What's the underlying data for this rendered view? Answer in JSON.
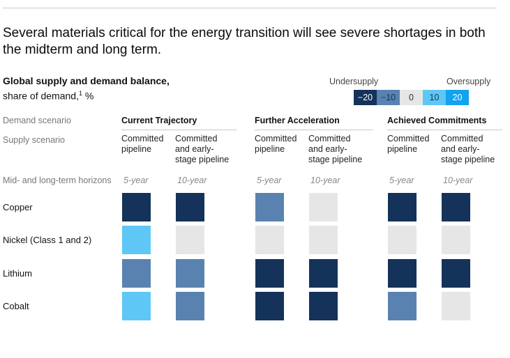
{
  "title": "Several materials critical for the energy transition will see severe shortages in both the midterm and long term.",
  "subtitle_bold": "Global supply and demand balance,",
  "subtitle_rest": "share of demand,",
  "subtitle_sup": "1",
  "subtitle_unit": " %",
  "legend": {
    "left_label": "Undersupply",
    "right_label": "Oversupply",
    "items": [
      {
        "label": "−20",
        "color": "#14325a",
        "text_color": "#ffffff"
      },
      {
        "label": "−10",
        "color": "#5a82b0",
        "text_color": "#14325a"
      },
      {
        "label": "0",
        "color": "#e6e6e6",
        "text_color": "#333333"
      },
      {
        "label": "10",
        "color": "#5ec7f5",
        "text_color": "#14325a"
      },
      {
        "label": "20",
        "color": "#12a2ef",
        "text_color": "#ffffff"
      }
    ]
  },
  "row_labels": {
    "demand": "Demand scenario",
    "supply": "Supply scenario",
    "horizons": "Mid- and long-term horizons"
  },
  "chart_data": {
    "type": "heatmap",
    "unit": "share of demand, %",
    "scale": [
      -20,
      -10,
      0,
      10,
      20
    ],
    "demand_scenarios": [
      "Current Trajectory",
      "Further Acceleration",
      "Achieved Commitments"
    ],
    "supply_scenarios": [
      "Committed pipeline",
      "Committed and early-stage pipeline"
    ],
    "supply_scenarios_display": [
      "Committed\npipeline",
      "Committed\nand early-\nstage pipeline"
    ],
    "horizons": [
      "5-year",
      "10-year"
    ],
    "columns": [
      {
        "demand": "Current Trajectory",
        "supply": "Committed pipeline",
        "horizon": "5-year"
      },
      {
        "demand": "Current Trajectory",
        "supply": "Committed and early-stage pipeline",
        "horizon": "10-year"
      },
      {
        "demand": "Further Acceleration",
        "supply": "Committed pipeline",
        "horizon": "5-year"
      },
      {
        "demand": "Further Acceleration",
        "supply": "Committed and early-stage pipeline",
        "horizon": "10-year"
      },
      {
        "demand": "Achieved Commitments",
        "supply": "Committed pipeline",
        "horizon": "5-year"
      },
      {
        "demand": "Achieved Commitments",
        "supply": "Committed and early-stage pipeline",
        "horizon": "10-year"
      }
    ],
    "materials": [
      "Copper",
      "Nickel (Class 1 and 2)",
      "Lithium",
      "Cobalt"
    ],
    "values": [
      [
        -20,
        -20,
        -10,
        0,
        -20,
        -20
      ],
      [
        10,
        0,
        0,
        0,
        0,
        0
      ],
      [
        -10,
        -10,
        -20,
        -20,
        -20,
        -20
      ],
      [
        10,
        -10,
        -20,
        -20,
        -10,
        0
      ]
    ]
  }
}
